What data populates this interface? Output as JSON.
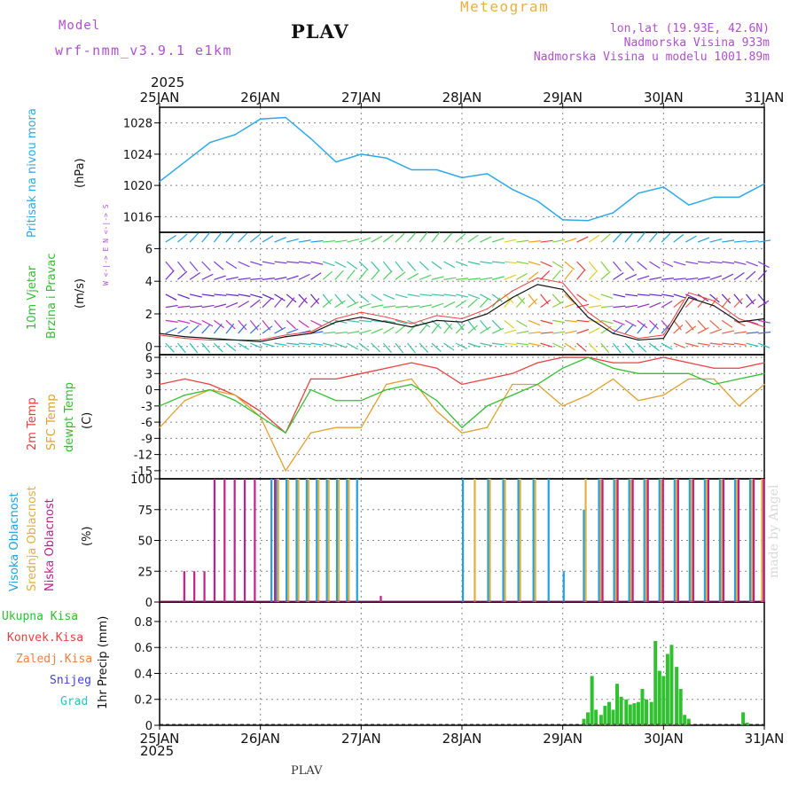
{
  "header": {
    "model_label": "Model",
    "model_name": "wrf-nmm_v3.9.1 e1km",
    "station": "PLAV",
    "product": "Meteogram",
    "lonlat": "lon,lat (19.93E, 42.6N)",
    "elevation": "Nadmorska Visina 933m",
    "model_elevation": "Nadmorska Visina u modelu 1001.89m",
    "year": "2025",
    "footer_station": "PLAV",
    "watermark": "made by Angel"
  },
  "colors": {
    "pressure": "#2ca8e8",
    "temp2m": "#e84040",
    "sfc": "#e0a030",
    "dewpt": "#30c030",
    "high_cloud": "#20a0e0",
    "mid_cloud": "#e0b040",
    "low_cloud": "#c0208c",
    "precip": "#30c030",
    "grid": "#888888"
  },
  "chart_data": [
    {
      "type": "line",
      "name": "pressure",
      "ylabel_main": "Pritisak na nivou mora",
      "unit": "(hPa)",
      "x_ticks": [
        "25JAN",
        "26JAN",
        "27JAN",
        "28JAN",
        "29JAN",
        "30JAN",
        "31JAN"
      ],
      "ylim": [
        1014,
        1030
      ],
      "yticks": [
        1016,
        1020,
        1024,
        1028
      ],
      "x": [
        0,
        0.25,
        0.5,
        0.75,
        1.0,
        1.25,
        1.5,
        1.75,
        2.0,
        2.25,
        2.5,
        2.75,
        3.0,
        3.25,
        3.5,
        3.75,
        4.0,
        4.25,
        4.5,
        4.75,
        5.0,
        5.25,
        5.5,
        5.75,
        6.0
      ],
      "values": [
        1020.5,
        1023,
        1025.5,
        1026.5,
        1028.5,
        1028.7,
        1026,
        1023,
        1024,
        1023.5,
        1022,
        1022,
        1021,
        1021.5,
        1019.5,
        1018,
        1015.6,
        1015.5,
        1016.5,
        1019,
        1019.8,
        1017.5,
        1018.5,
        1018.5,
        1020.2
      ]
    },
    {
      "type": "line",
      "name": "wind",
      "ylabel_main": "10m Vjetar",
      "ylabel_sub": "Brzina i Pravac",
      "unit": "(m/s)",
      "direction_legend": "W <-|-> E  N <-|-> S",
      "ylim": [
        -0.5,
        7
      ],
      "yticks": [
        0,
        2,
        4,
        6
      ],
      "x": [
        0,
        0.25,
        0.5,
        0.75,
        1.0,
        1.25,
        1.5,
        1.75,
        2.0,
        2.25,
        2.5,
        2.75,
        3.0,
        3.25,
        3.5,
        3.75,
        4.0,
        4.25,
        4.5,
        4.75,
        5.0,
        5.25,
        5.5,
        5.75,
        6.0
      ],
      "values": [
        0.8,
        0.6,
        0.5,
        0.4,
        0.3,
        0.6,
        0.8,
        1.5,
        1.8,
        1.5,
        1.2,
        1.6,
        1.5,
        2.0,
        3.0,
        3.8,
        3.5,
        1.8,
        0.8,
        0.4,
        0.5,
        3.0,
        2.5,
        1.5,
        1.7
      ],
      "gust_values": [
        0.7,
        0.5,
        0.4,
        0.4,
        0.4,
        0.7,
        0.9,
        1.7,
        2.1,
        1.8,
        1.4,
        1.9,
        1.7,
        2.3,
        3.4,
        4.2,
        3.9,
        2.1,
        1.0,
        0.5,
        0.7,
        3.3,
        2.8,
        1.7,
        1.2
      ]
    },
    {
      "type": "line",
      "name": "temperature",
      "series_labels": [
        "2m Temp",
        "SFC Temp",
        "dewpt Temp"
      ],
      "unit": "(C)",
      "ylim": [
        -16.5,
        6.5
      ],
      "yticks": [
        -15,
        -12,
        -9,
        -6,
        -3,
        0,
        3,
        6
      ],
      "x": [
        0,
        0.25,
        0.5,
        0.75,
        1.0,
        1.25,
        1.5,
        1.75,
        2.0,
        2.25,
        2.5,
        2.75,
        3.0,
        3.25,
        3.5,
        3.75,
        4.0,
        4.25,
        4.5,
        4.75,
        5.0,
        5.25,
        5.5,
        5.75,
        6.0
      ],
      "series": [
        {
          "name": "2m Temp",
          "values": [
            1,
            2,
            1,
            -1,
            -4,
            -8,
            2,
            2,
            3,
            4,
            5,
            4,
            1,
            2,
            3,
            5,
            6,
            6,
            5,
            5,
            6,
            5,
            4,
            4,
            5
          ]
        },
        {
          "name": "SFC Temp",
          "values": [
            -7,
            -2,
            0,
            -1,
            -5,
            -15,
            -8,
            -7,
            -7,
            1,
            2,
            -4,
            -8,
            -7,
            1,
            1,
            -3,
            -1,
            2,
            -2,
            -1,
            2,
            2,
            -3,
            1
          ]
        },
        {
          "name": "dewpt Temp",
          "values": [
            -3,
            -1,
            0,
            -2,
            -5,
            -8,
            0,
            -2,
            -2,
            0,
            1,
            -2,
            -7,
            -3,
            -1,
            1,
            4,
            6,
            4,
            3,
            3,
            3,
            1,
            2,
            3
          ]
        }
      ]
    },
    {
      "type": "bar",
      "name": "cloud",
      "series_labels": [
        "Visoka Oblacnost",
        "Srednja Oblacnost",
        "Niska Oblacnost"
      ],
      "unit": "(%)",
      "ylim": [
        0,
        100
      ],
      "yticks": [
        0,
        25,
        50,
        75,
        100
      ],
      "x": [
        0.1,
        0.2,
        0.3,
        0.4,
        0.5,
        0.6,
        0.7,
        0.8,
        0.9,
        1.0,
        1.1,
        1.15,
        1.25,
        1.35,
        1.45,
        1.55,
        1.65,
        1.75,
        1.85,
        1.95,
        2.05,
        2.15,
        2.3,
        2.5,
        2.7,
        2.9,
        3.0,
        3.1,
        3.25,
        3.4,
        3.55,
        3.7,
        3.85,
        4.0,
        4.1,
        4.2,
        4.35,
        4.5,
        4.65,
        4.8,
        4.95,
        5.1,
        5.25,
        5.4,
        5.55,
        5.7,
        5.85,
        5.95
      ],
      "series": [
        {
          "name": "Visoka Oblacnost",
          "values": [
            0,
            0,
            0,
            0,
            0,
            0,
            0,
            0,
            0,
            0,
            100,
            100,
            100,
            100,
            100,
            100,
            100,
            100,
            100,
            100,
            0,
            0,
            0,
            0,
            0,
            0,
            100,
            0,
            100,
            100,
            100,
            100,
            100,
            25,
            0,
            75,
            100,
            100,
            100,
            100,
            100,
            100,
            100,
            100,
            100,
            100,
            100,
            0
          ]
        },
        {
          "name": "Srednja Oblacnost",
          "values": [
            0,
            0,
            0,
            0,
            0,
            0,
            0,
            0,
            0,
            0,
            0,
            100,
            100,
            100,
            100,
            100,
            100,
            100,
            100,
            0,
            0,
            0,
            0,
            0,
            0,
            0,
            0,
            100,
            100,
            100,
            100,
            100,
            0,
            0,
            0,
            100,
            100,
            100,
            100,
            100,
            100,
            100,
            100,
            100,
            100,
            100,
            100,
            100
          ]
        },
        {
          "name": "Niska Oblacnost",
          "values": [
            0,
            25,
            25,
            25,
            100,
            100,
            100,
            100,
            100,
            0,
            100,
            0,
            0,
            0,
            0,
            0,
            0,
            0,
            0,
            0,
            0,
            5,
            0,
            0,
            0,
            0,
            0,
            0,
            0,
            0,
            0,
            0,
            0,
            0,
            0,
            0,
            100,
            100,
            100,
            100,
            100,
            100,
            100,
            100,
            100,
            100,
            100,
            100
          ]
        }
      ]
    },
    {
      "type": "bar",
      "name": "precipitation",
      "series_labels": [
        "Ukupna Kisa",
        "Konvek.Kisa",
        "Zaledj.Kisa",
        "Snijeg",
        "Grad"
      ],
      "unit_label": "1hr Precip (mm)",
      "ylim": [
        0,
        0.95
      ],
      "yticks": [
        0,
        0.2,
        0.4,
        0.6,
        0.8
      ],
      "x_ticks": [
        "25JAN",
        "26JAN",
        "27JAN",
        "28JAN",
        "29JAN",
        "30JAN",
        "31JAN"
      ],
      "x": [
        4.21,
        4.25,
        4.29,
        4.33,
        4.38,
        4.42,
        4.46,
        4.5,
        4.54,
        4.58,
        4.63,
        4.67,
        4.71,
        4.75,
        4.79,
        4.83,
        4.88,
        4.92,
        4.96,
        5.0,
        5.04,
        5.08,
        5.13,
        5.17,
        5.21,
        5.25,
        5.79,
        5.83
      ],
      "values": [
        0.05,
        0.1,
        0.38,
        0.12,
        0.08,
        0.15,
        0.18,
        0.12,
        0.32,
        0.22,
        0.2,
        0.16,
        0.17,
        0.18,
        0.28,
        0.2,
        0.18,
        0.65,
        0.42,
        0.38,
        0.55,
        0.62,
        0.45,
        0.28,
        0.08,
        0.05,
        0.1,
        0.02
      ]
    }
  ]
}
